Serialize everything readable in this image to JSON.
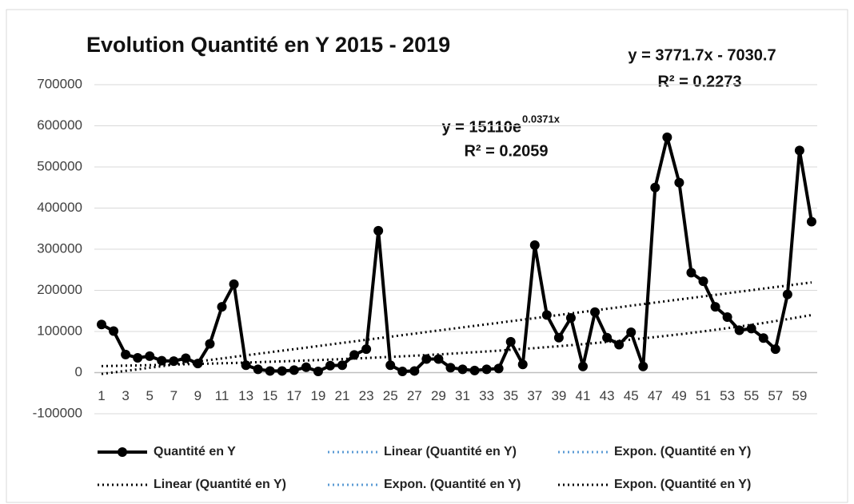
{
  "chart_data": {
    "type": "line",
    "title": "Evolution Quantité en Y 2015 - 2019",
    "categories": [
      1,
      null,
      3,
      null,
      5,
      null,
      7,
      null,
      9,
      null,
      11,
      null,
      13,
      null,
      15,
      null,
      17,
      null,
      19,
      null,
      21,
      null,
      23,
      null,
      25,
      null,
      27,
      null,
      29,
      null,
      31,
      null,
      33,
      null,
      35,
      null,
      37,
      null,
      39,
      null,
      41,
      null,
      43,
      null,
      45,
      null,
      47,
      null,
      49,
      null,
      51,
      null,
      53,
      null,
      55,
      null,
      57,
      null,
      59,
      null
    ],
    "series": [
      {
        "name": "Quantité en Y",
        "color": "#000000",
        "values": [
          117000,
          101000,
          44000,
          36000,
          40000,
          29000,
          28000,
          35000,
          22000,
          70000,
          160000,
          215000,
          18000,
          8000,
          4000,
          4000,
          6000,
          13000,
          3000,
          17000,
          18000,
          43000,
          57000,
          345000,
          18000,
          3000,
          4000,
          33000,
          33000,
          12000,
          8000,
          5000,
          8000,
          10000,
          75000,
          20000,
          310000,
          140000,
          85000,
          133000,
          15000,
          147000,
          85000,
          68000,
          98000,
          15000,
          450000,
          572000,
          462000,
          243000,
          222000,
          160000,
          135000,
          103000,
          107000,
          84000,
          57000,
          190000,
          540000,
          367000
        ]
      }
    ],
    "trendlines": [
      {
        "kind": "linear",
        "color": "#000000",
        "slope": 3771.7,
        "intercept": -7030.7
      },
      {
        "kind": "exponential",
        "color": "#000000",
        "coefficient": 15110,
        "rate": 0.0371
      }
    ],
    "legend": [
      {
        "name": "Quantité en Y",
        "color": "#000000",
        "style": "solid"
      },
      {
        "name": "Linear (Quantité en Y)",
        "color": "#5b9bd5",
        "style": "dotted"
      },
      {
        "name": "Expon. (Quantité en Y)",
        "color": "#5b9bd5",
        "style": "dotted"
      },
      {
        "name": "Linear (Quantité en Y)",
        "color": "#000000",
        "style": "dotted"
      },
      {
        "name": "Expon. (Quantité en Y)",
        "color": "#5b9bd5",
        "style": "dotted"
      },
      {
        "name": "Expon. (Quantité en Y)",
        "color": "#000000",
        "style": "dotted"
      }
    ],
    "annotations": {
      "linear_equation": "y = 3771.7x - 7030.7",
      "linear_r2": "R² = 0.2273",
      "expon_equation": "y = 15110e",
      "expon_exponent": "0.0371x",
      "expon_r2": "R² = 0.2059"
    },
    "ylim": [
      -100000,
      700000
    ],
    "yticks": [
      -100000,
      0,
      100000,
      200000,
      300000,
      400000,
      500000,
      600000,
      700000
    ],
    "grid": true
  }
}
